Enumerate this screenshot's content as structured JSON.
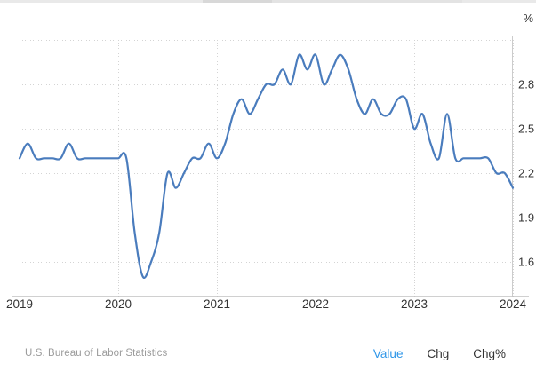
{
  "chart": {
    "unit": "%"
  },
  "chart_data": {
    "type": "line",
    "title": "",
    "unit": "%",
    "frequency": "monthly",
    "start_month": "2019-01",
    "end_month": "2024-01",
    "values": [
      2.3,
      2.4,
      2.3,
      2.3,
      2.3,
      2.3,
      2.4,
      2.3,
      2.3,
      2.3,
      2.3,
      2.3,
      2.3,
      2.3,
      1.8,
      1.5,
      1.6,
      1.8,
      2.2,
      2.1,
      2.2,
      2.3,
      2.3,
      2.4,
      2.3,
      2.4,
      2.6,
      2.7,
      2.6,
      2.7,
      2.8,
      2.8,
      2.9,
      2.8,
      3.0,
      2.9,
      3.0,
      2.8,
      2.9,
      3.0,
      2.9,
      2.7,
      2.6,
      2.7,
      2.6,
      2.6,
      2.7,
      2.7,
      2.5,
      2.6,
      2.4,
      2.3,
      2.6,
      2.3,
      2.3,
      2.3,
      2.3,
      2.3,
      2.2,
      2.2,
      2.1
    ],
    "x_tick_labels": [
      "2019",
      "2020",
      "2021",
      "2022",
      "2023",
      "2024"
    ],
    "y_tick_labels": [
      "1.6",
      "1.9",
      "2.2",
      "2.5",
      "2.8"
    ],
    "ylim": [
      1.37,
      3.1
    ],
    "grid": true,
    "legend": "none",
    "line_color": "#4a7cbd",
    "tick_label_color": "#333333",
    "source_color": "#9b9b9b",
    "active_link_color": "#2e96e8"
  },
  "footer": {
    "source": "U.S. Bureau of Labor Statistics",
    "links": [
      {
        "label": "Value",
        "active": true
      },
      {
        "label": "Chg",
        "active": false
      },
      {
        "label": "Chg%",
        "active": false
      }
    ]
  }
}
